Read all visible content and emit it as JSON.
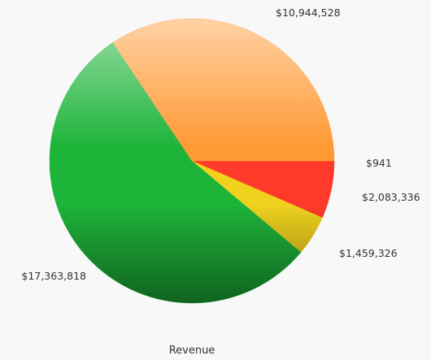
{
  "chart_data": {
    "type": "pie",
    "title": "",
    "xlabel": "Revenue",
    "start_angle_deg": 0,
    "direction": "clockwise",
    "slices": [
      {
        "label": "$941",
        "value": 941,
        "color": "#e8202a",
        "label_color": "#c00000"
      },
      {
        "label": "$2,083,336",
        "value": 2083336,
        "color": "#ff3a2a",
        "label_color": "#333333"
      },
      {
        "label": "$1,459,326",
        "value": 1459326,
        "color": "#f0d21e",
        "label_color": "#333333"
      },
      {
        "label": "$17,363,818",
        "value": 17363818,
        "color": "#1eb43a",
        "label_color": "#333333"
      },
      {
        "label": "$10,944,528",
        "value": 10944528,
        "color": "#ff9a35",
        "label_color": "#333333"
      }
    ]
  }
}
